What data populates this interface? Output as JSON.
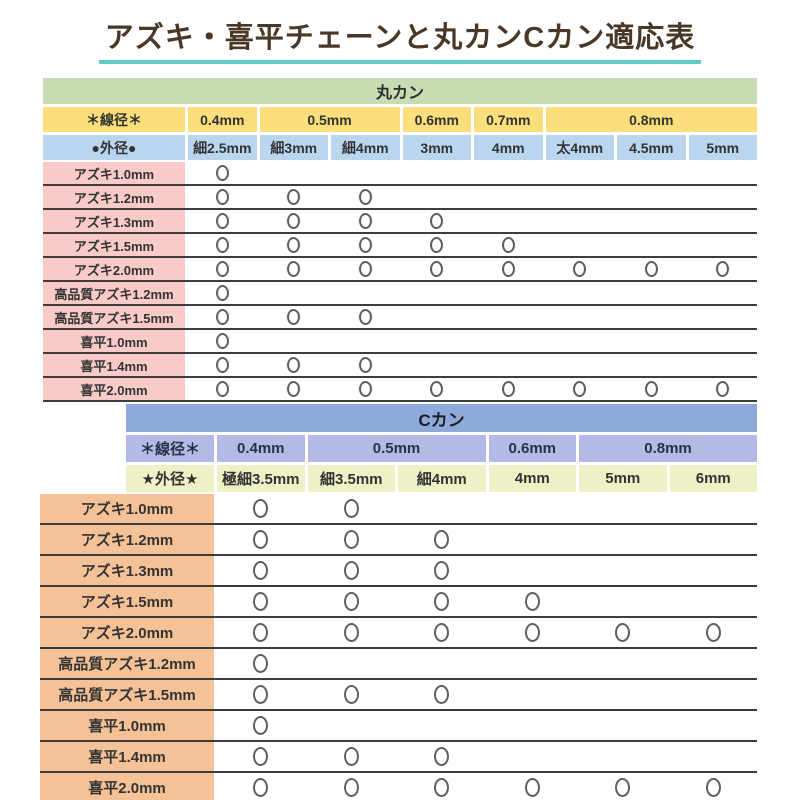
{
  "title": "アズキ・喜平チェーンと丸カンCカン適応表",
  "mark_symbol": "○",
  "colors": {
    "green_header": "#c7dcb2",
    "yellow_row": "#fcdf7d",
    "blue_row": "#b9d6ee",
    "pink_label": "#f8cbc8",
    "c_header_blue": "#8ea9db",
    "lavender_row": "#b3bae6",
    "ygreen_row": "#eef0c6",
    "orange_label": "#f5c197",
    "line_color": "#3c3c3c",
    "mark_color": "#5f5f5f",
    "title_color": "#4a3827",
    "title_underline": "#5fc9c9"
  },
  "tables": [
    {
      "id": "marukan",
      "name": "丸カン",
      "wire_label": "＊線径＊",
      "outer_label": "●外径●",
      "wire_groups": [
        {
          "label": "0.4mm",
          "span": 1
        },
        {
          "label": "0.5mm",
          "span": 2
        },
        {
          "label": "0.6mm",
          "span": 1
        },
        {
          "label": "0.7mm",
          "span": 1
        },
        {
          "label": "0.8mm",
          "span": 3
        }
      ],
      "outer_sizes": [
        "細2.5mm",
        "細3mm",
        "細4mm",
        "3mm",
        "4mm",
        "太4mm",
        "4.5mm",
        "5mm"
      ],
      "rows": [
        {
          "label": "アズキ1.0mm",
          "marks": [
            1,
            0,
            0,
            0,
            0,
            0,
            0,
            0
          ]
        },
        {
          "label": "アズキ1.2mm",
          "marks": [
            1,
            1,
            1,
            0,
            0,
            0,
            0,
            0
          ]
        },
        {
          "label": "アズキ1.3mm",
          "marks": [
            1,
            1,
            1,
            1,
            0,
            0,
            0,
            0
          ]
        },
        {
          "label": "アズキ1.5mm",
          "marks": [
            1,
            1,
            1,
            1,
            1,
            0,
            0,
            0
          ]
        },
        {
          "label": "アズキ2.0mm",
          "marks": [
            1,
            1,
            1,
            1,
            1,
            1,
            1,
            1
          ]
        },
        {
          "label": "高品質アズキ1.2mm",
          "marks": [
            1,
            0,
            0,
            0,
            0,
            0,
            0,
            0
          ]
        },
        {
          "label": "高品質アズキ1.5mm",
          "marks": [
            1,
            1,
            1,
            0,
            0,
            0,
            0,
            0
          ]
        },
        {
          "label": "喜平1.0mm",
          "marks": [
            1,
            0,
            0,
            0,
            0,
            0,
            0,
            0
          ]
        },
        {
          "label": "喜平1.4mm",
          "marks": [
            1,
            1,
            1,
            0,
            0,
            0,
            0,
            0
          ]
        },
        {
          "label": "喜平2.0mm",
          "marks": [
            1,
            1,
            1,
            1,
            1,
            1,
            1,
            1
          ]
        }
      ]
    },
    {
      "id": "ckan",
      "name": "Cカン",
      "wire_label": "＊線径＊",
      "outer_label": "★外径★",
      "wire_groups": [
        {
          "label": "0.4mm",
          "span": 1
        },
        {
          "label": "0.5mm",
          "span": 2
        },
        {
          "label": "0.6mm",
          "span": 1
        },
        {
          "label": "0.8mm",
          "span": 2
        }
      ],
      "outer_sizes": [
        "極細3.5mm",
        "細3.5mm",
        "細4mm",
        "4mm",
        "5mm",
        "6mm"
      ],
      "rows": [
        {
          "label": "アズキ1.0mm",
          "marks": [
            1,
            1,
            0,
            0,
            0,
            0
          ]
        },
        {
          "label": "アズキ1.2mm",
          "marks": [
            1,
            1,
            1,
            0,
            0,
            0
          ]
        },
        {
          "label": "アズキ1.3mm",
          "marks": [
            1,
            1,
            1,
            0,
            0,
            0
          ]
        },
        {
          "label": "アズキ1.5mm",
          "marks": [
            1,
            1,
            1,
            1,
            0,
            0
          ]
        },
        {
          "label": "アズキ2.0mm",
          "marks": [
            1,
            1,
            1,
            1,
            1,
            1
          ]
        },
        {
          "label": "高品質アズキ1.2mm",
          "marks": [
            1,
            0,
            0,
            0,
            0,
            0
          ]
        },
        {
          "label": "高品質アズキ1.5mm",
          "marks": [
            1,
            1,
            1,
            0,
            0,
            0
          ]
        },
        {
          "label": "喜平1.0mm",
          "marks": [
            1,
            0,
            0,
            0,
            0,
            0
          ]
        },
        {
          "label": "喜平1.4mm",
          "marks": [
            1,
            1,
            1,
            0,
            0,
            0
          ]
        },
        {
          "label": "喜平2.0mm",
          "marks": [
            1,
            1,
            1,
            1,
            1,
            1
          ]
        }
      ]
    }
  ]
}
